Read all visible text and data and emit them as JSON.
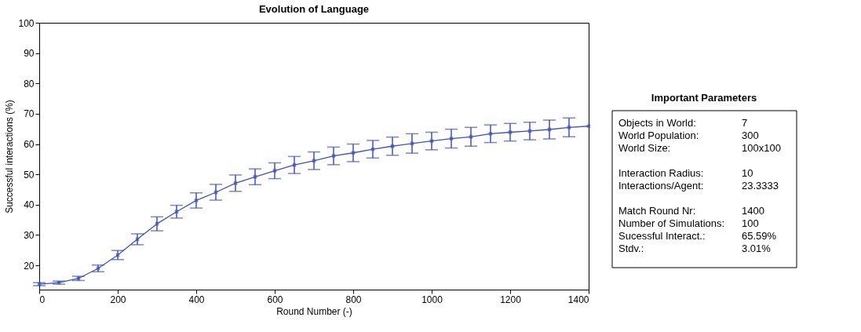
{
  "chart_data": [
    {
      "type": "line",
      "title": "Evolution of Language",
      "xlabel": "Round Number (-)",
      "ylabel": "Successful interactions (%)",
      "x": [
        0,
        50,
        100,
        150,
        200,
        250,
        300,
        350,
        400,
        450,
        500,
        550,
        600,
        650,
        700,
        750,
        800,
        850,
        900,
        950,
        1000,
        1050,
        1100,
        1150,
        1200,
        1250,
        1300,
        1350,
        1400
      ],
      "series": [
        {
          "color": "#3f51b5",
          "values": [
            13.8,
            14.3,
            15.7,
            19.0,
            23.4,
            28.6,
            33.7,
            37.7,
            41.4,
            44.1,
            47.1,
            49.2,
            51.2,
            53.1,
            54.5,
            56.1,
            57.1,
            58.3,
            59.3,
            60.2,
            61.0,
            61.8,
            62.4,
            63.4,
            63.9,
            64.3,
            64.8,
            65.5,
            65.9
          ],
          "errors": [
            0.5,
            0.5,
            0.7,
            1.1,
            1.5,
            1.8,
            2.3,
            2.1,
            2.5,
            2.6,
            2.7,
            2.6,
            2.6,
            2.8,
            2.9,
            2.9,
            2.9,
            2.9,
            3.0,
            3.2,
            2.9,
            3.1,
            3.1,
            2.9,
            2.9,
            2.9,
            3.1,
            3.1,
            null
          ]
        }
      ],
      "xlim": [
        0,
        1400
      ],
      "xticks": [
        0,
        200,
        400,
        600,
        800,
        1000,
        1200,
        1400
      ],
      "ylim": [
        12,
        100
      ],
      "yticks": [
        20,
        30,
        40,
        50,
        60,
        70,
        80,
        90,
        100
      ],
      "grid": false,
      "marker": "cross",
      "line_style": "solid"
    },
    {
      "type": "other",
      "title": "Important Parameters",
      "annotations": [
        "Objects in World:",
        "7",
        "World Population:",
        "300",
        "World Size:",
        "100x100",
        "Interaction Radius:",
        "10",
        "Interactions/Agent:",
        "23.3333",
        "Match Round Nr:",
        "1400",
        "Number of Simulations:",
        "100",
        "Sucessful Interact.:",
        "65.59%",
        "Stdv.:",
        "3.01%"
      ]
    }
  ]
}
